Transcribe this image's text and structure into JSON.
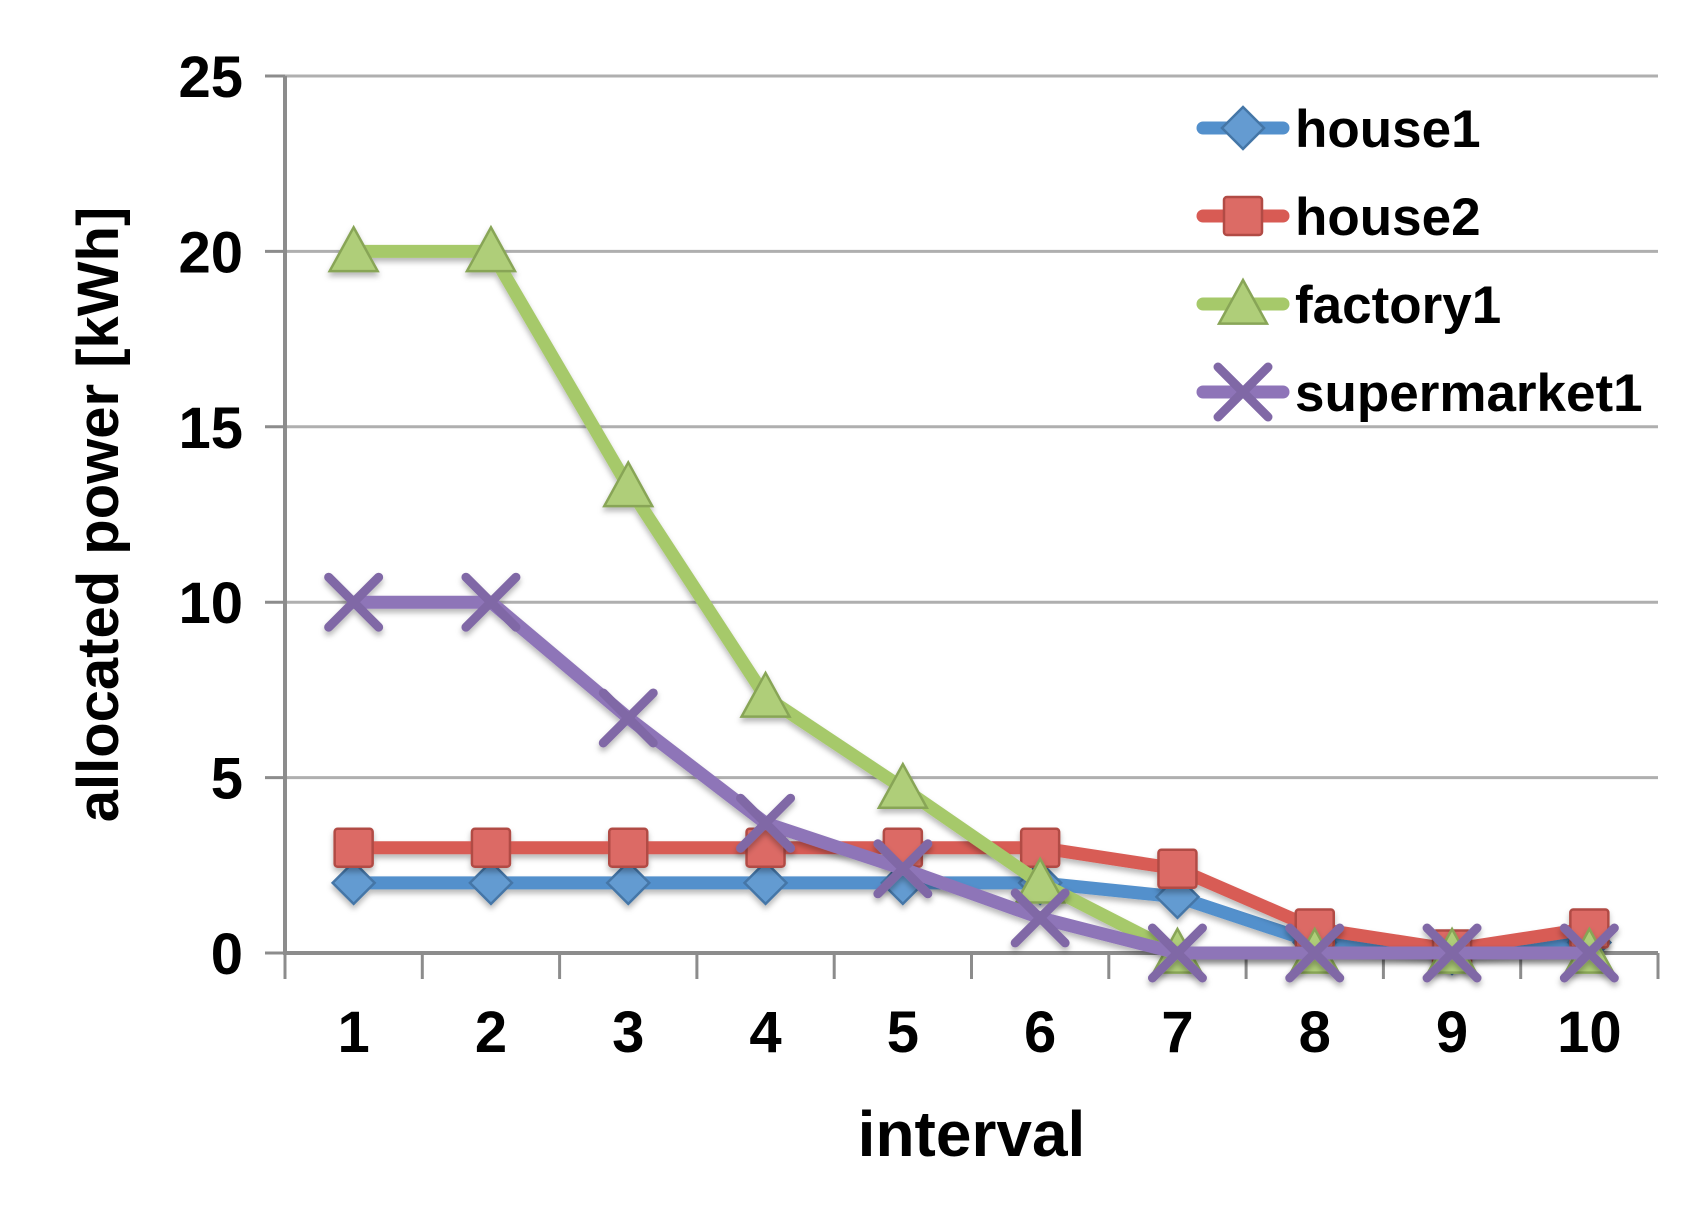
{
  "page": {
    "background": "#FFFFFF"
  },
  "chart_data": {
    "type": "line",
    "title": "",
    "xlabel": "interval",
    "ylabel": "allocated power [kWh]",
    "xticks": [
      "1",
      "2",
      "3",
      "4",
      "5",
      "6",
      "7",
      "8",
      "9",
      "10"
    ],
    "yticks": [
      "0",
      "5",
      "10",
      "15",
      "20",
      "25"
    ],
    "ylim": [
      0,
      25
    ],
    "ytick_step": 5,
    "grid": true,
    "legend_position": "top-right-inside",
    "axis_color": "#8C8C8C",
    "gridline_color": "#AFAFAF",
    "text_color": "#000000",
    "series": [
      {
        "name": "house1",
        "marker": "diamond",
        "color": "#5390CC",
        "values": [
          2,
          2,
          2,
          2,
          2,
          2,
          1.6,
          0.3,
          0,
          0.3
        ]
      },
      {
        "name": "house2",
        "marker": "square",
        "color": "#D85B54",
        "values": [
          3,
          3,
          3,
          3,
          3,
          3,
          2.4,
          0.7,
          0.1,
          0.7
        ]
      },
      {
        "name": "factory1",
        "marker": "triangle",
        "color": "#A6C96A",
        "values": [
          20,
          20,
          13.3,
          7.3,
          4.7,
          2,
          0,
          0,
          0,
          0
        ]
      },
      {
        "name": "supermarket1",
        "marker": "x",
        "color": "#8E74B8",
        "values": [
          10,
          10,
          6.7,
          3.7,
          2.4,
          1,
          0,
          0,
          0,
          0
        ]
      }
    ]
  }
}
